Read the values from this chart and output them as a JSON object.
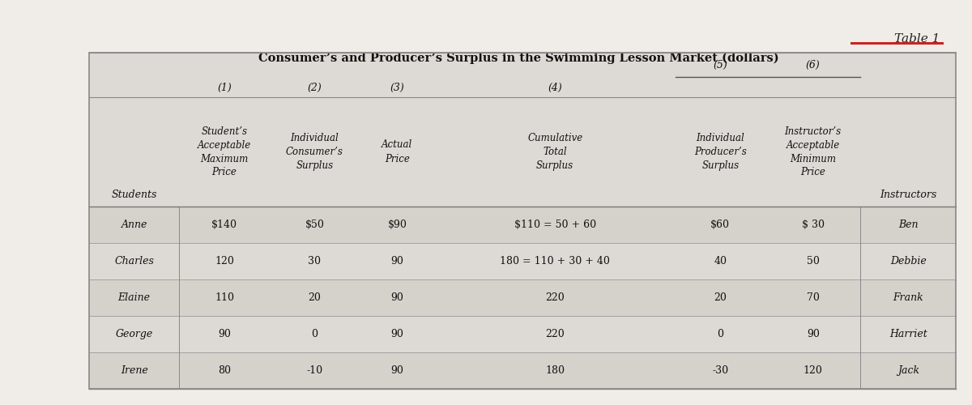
{
  "title": "Consumer’s and Producer’s Surplus in the Swimming Lesson Market (dollars)",
  "table_label": "Table 1",
  "col_headers": [
    "Student’s\nAcceptable\nMaximum\nPrice",
    "Individual\nConsumer’s\nSurplus",
    "Actual\nPrice",
    "Cumulative\nTotal\nSurplus",
    "Individual\nProducer’s\nSurplus",
    "Instructor’s\nAcceptable\nMinimum\nPrice"
  ],
  "col_header_students": "Students",
  "col_header_instructors": "Instructors",
  "rows": [
    [
      "Anne",
      "$140",
      "$50",
      "$90",
      "$110 = 50 + 60",
      "$60",
      "$ 30",
      "Ben"
    ],
    [
      "Charles",
      "120",
      "30",
      "90",
      "180 = 110 + 30 + 40",
      "40",
      "50",
      "Debbie"
    ],
    [
      "Elaine",
      "110",
      "20",
      "90",
      "220",
      "20",
      "70",
      "Frank"
    ],
    [
      "George",
      "90",
      "0",
      "90",
      "220",
      "0",
      "90",
      "Harriet"
    ],
    [
      "Irene",
      "80",
      "-10",
      "90",
      "180",
      "-30",
      "120",
      "Jack"
    ]
  ],
  "bg_outer": "#f0ede8",
  "bg_table": "#e2e0dc",
  "bg_row_light": "#e8e5e0",
  "bg_row_dark": "#d8d5d0",
  "text_color": "#111111",
  "title_color": "#111111",
  "table_label_color": "#222222",
  "line_color": "#888888",
  "table_font_size": 9.0,
  "title_font_size": 10.5,
  "num_font_size": 9.0
}
